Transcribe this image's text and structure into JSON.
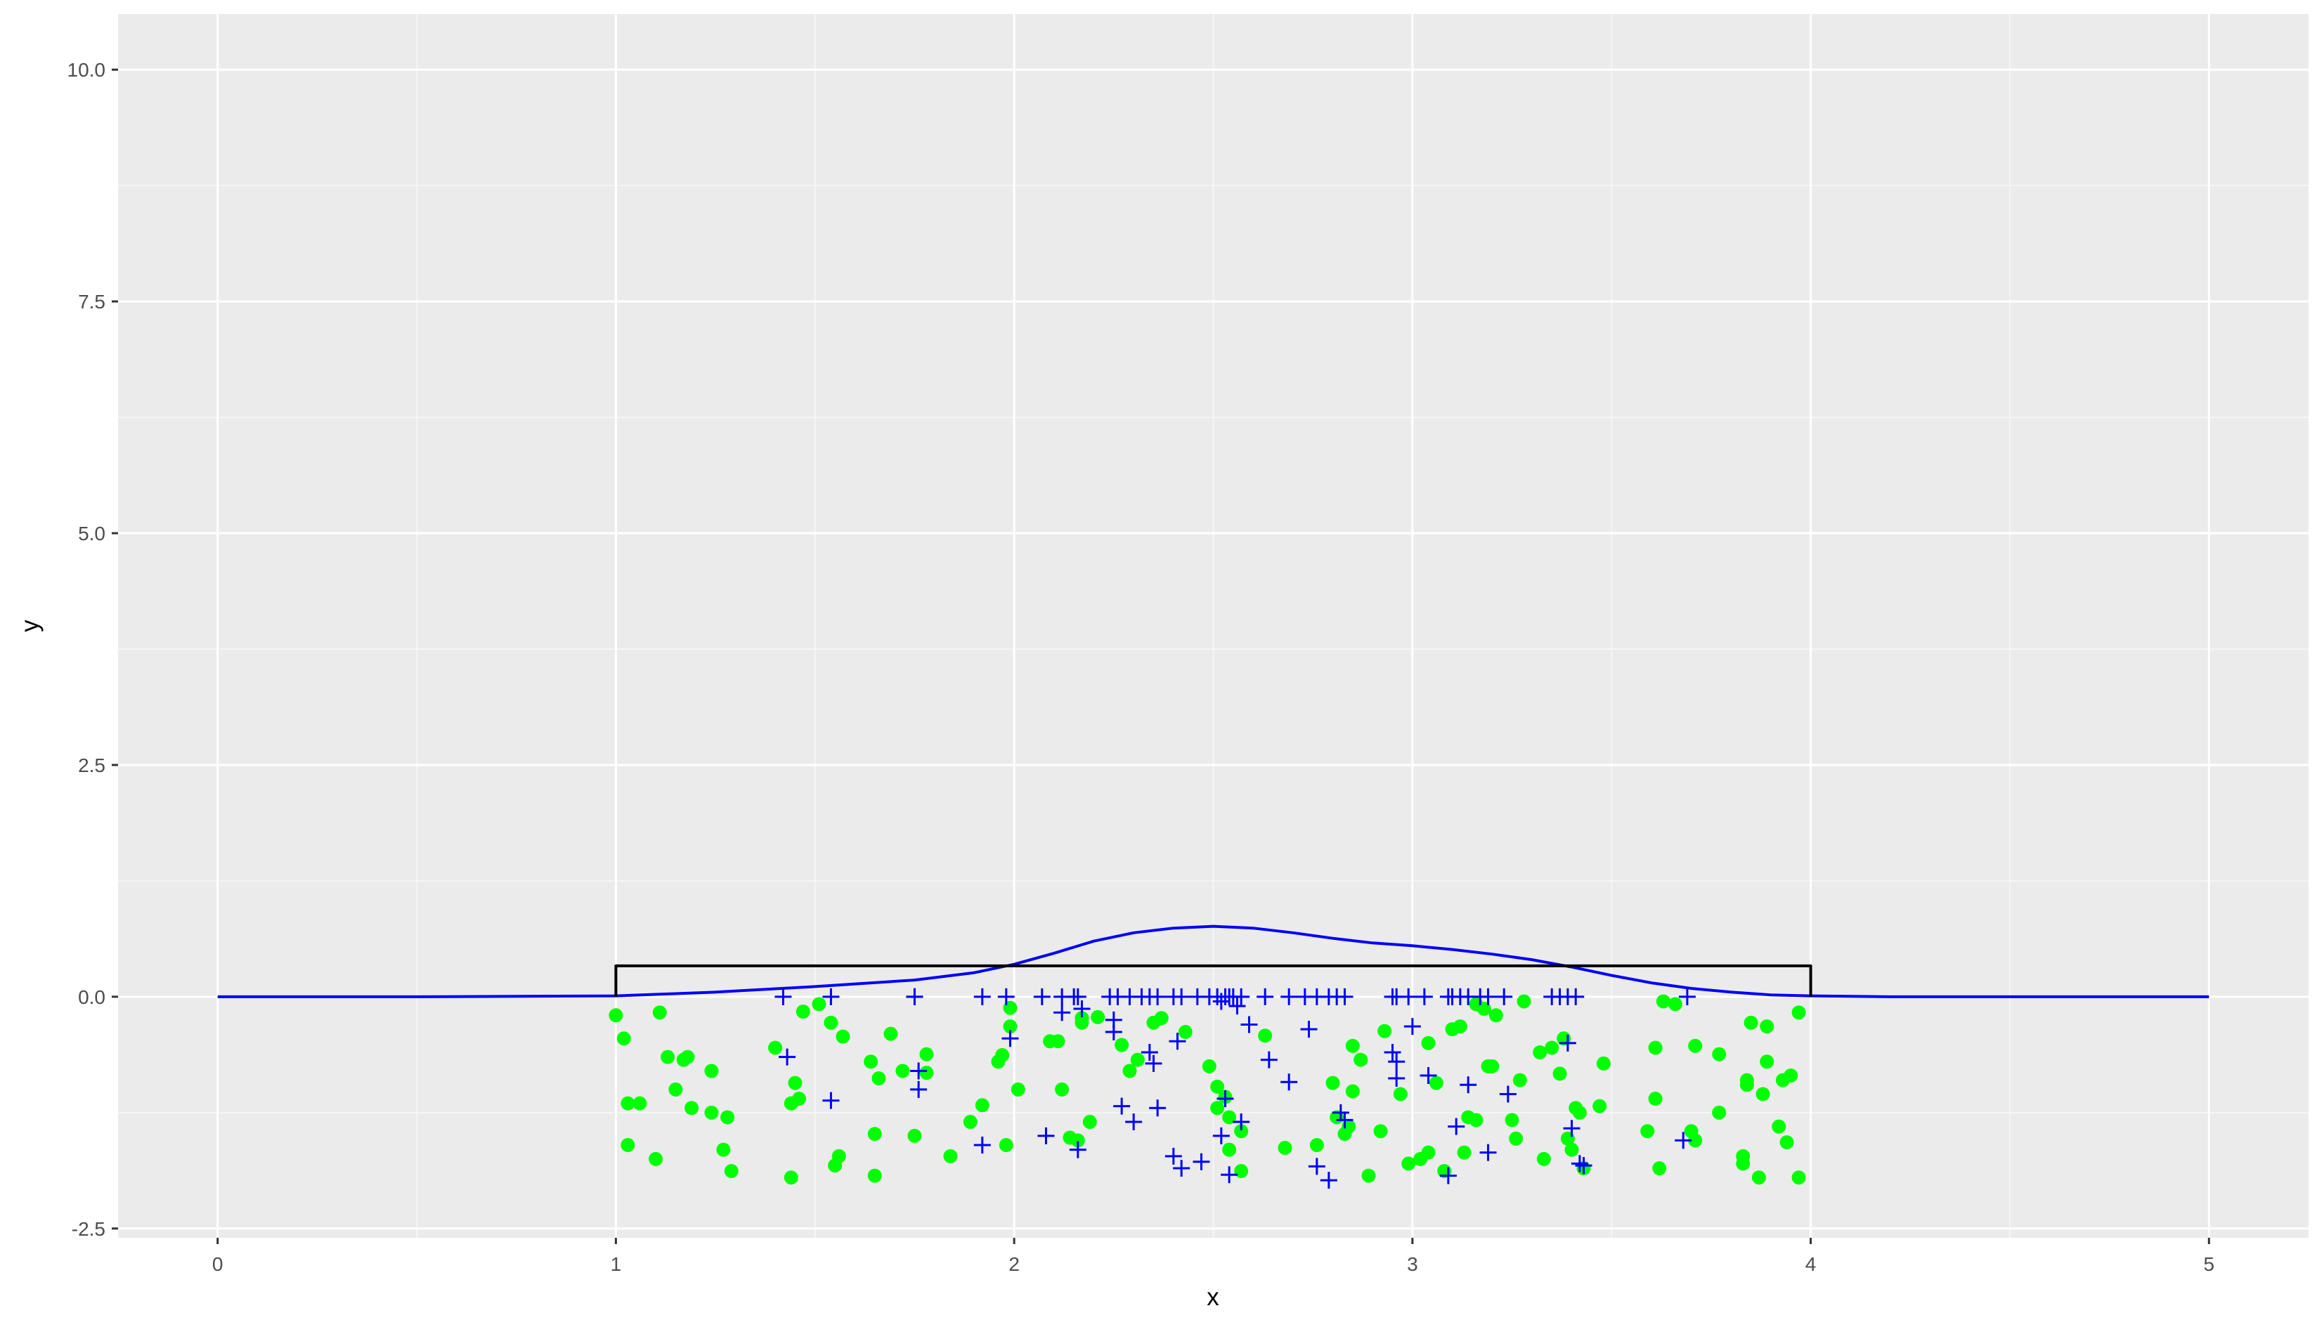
{
  "chart_data": {
    "type": "scatter",
    "title": "",
    "xlabel": "x",
    "ylabel": "y",
    "xlim": [
      -0.25,
      5.25
    ],
    "ylim": [
      -2.6,
      10.6
    ],
    "x_ticks": [
      0,
      1,
      2,
      3,
      4,
      5
    ],
    "x_tick_labels": [
      "0",
      "1",
      "2",
      "3",
      "4",
      "5"
    ],
    "y_ticks": [
      -2.5,
      0,
      2.5,
      5,
      7.5,
      10
    ],
    "y_tick_labels": [
      "-2.5",
      "0.0",
      "2.5",
      "5.0",
      "7.5",
      "10.0"
    ],
    "grid": true,
    "legend": "none",
    "colors": {
      "panel_bg": "#ebebeb",
      "grid_major": "#ffffff",
      "grid_minor": "#f5f5f5",
      "density_line": "#0000ff",
      "uniform_line": "#000000",
      "green_points": "#00ff00",
      "blue_crosses": "#0000ff"
    },
    "lines": [
      {
        "style": "density",
        "color": "#0000ff",
        "x": [
          0,
          0.5,
          1.0,
          1.25,
          1.5,
          1.75,
          1.9,
          2.0,
          2.1,
          2.2,
          2.3,
          2.4,
          2.5,
          2.6,
          2.7,
          2.8,
          2.9,
          3.0,
          3.1,
          3.2,
          3.3,
          3.4,
          3.5,
          3.6,
          3.7,
          3.8,
          3.9,
          4.0,
          4.2,
          4.5,
          5.0
        ],
        "y": [
          0,
          0,
          0.01,
          0.05,
          0.11,
          0.18,
          0.26,
          0.35,
          0.47,
          0.6,
          0.69,
          0.74,
          0.76,
          0.74,
          0.69,
          0.63,
          0.58,
          0.55,
          0.51,
          0.46,
          0.4,
          0.32,
          0.23,
          0.15,
          0.09,
          0.05,
          0.02,
          0.01,
          0.0,
          0,
          0
        ]
      },
      {
        "style": "uniform",
        "color": "#000000",
        "x": [
          1,
          1,
          4,
          4
        ],
        "y": [
          0,
          0.333,
          0.333,
          0
        ]
      }
    ],
    "series": [
      {
        "marker": "circle",
        "color": "#00ff00",
        "points": [
          [
            1.0,
            -0.2
          ],
          [
            1.02,
            -0.45
          ],
          [
            1.03,
            -1.15
          ],
          [
            1.03,
            -1.6
          ],
          [
            1.06,
            -1.15
          ],
          [
            1.1,
            -1.75
          ],
          [
            1.11,
            -0.17
          ],
          [
            1.13,
            -0.65
          ],
          [
            1.15,
            -1.0
          ],
          [
            1.17,
            -0.68
          ],
          [
            1.18,
            -0.65
          ],
          [
            1.19,
            -1.2
          ],
          [
            1.24,
            -0.8
          ],
          [
            1.24,
            -1.25
          ],
          [
            1.27,
            -1.65
          ],
          [
            1.28,
            -1.3
          ],
          [
            1.29,
            -1.88
          ],
          [
            1.4,
            -0.55
          ],
          [
            1.44,
            -1.15
          ],
          [
            1.44,
            -1.95
          ],
          [
            1.45,
            -0.93
          ],
          [
            1.46,
            -1.1
          ],
          [
            1.47,
            -0.16
          ],
          [
            1.51,
            -0.08
          ],
          [
            1.54,
            -0.28
          ],
          [
            1.55,
            -1.82
          ],
          [
            1.56,
            -1.72
          ],
          [
            1.57,
            -0.43
          ],
          [
            1.64,
            -0.7
          ],
          [
            1.65,
            -1.48
          ],
          [
            1.65,
            -1.93
          ],
          [
            1.66,
            -0.88
          ],
          [
            1.69,
            -0.4
          ],
          [
            1.72,
            -0.8
          ],
          [
            1.75,
            -1.5
          ],
          [
            1.78,
            -0.62
          ],
          [
            1.78,
            -0.82
          ],
          [
            1.84,
            -1.72
          ],
          [
            1.89,
            -1.35
          ],
          [
            1.92,
            -1.17
          ],
          [
            1.96,
            -0.7
          ],
          [
            1.97,
            -0.63
          ],
          [
            1.98,
            -1.6
          ],
          [
            1.99,
            -0.12
          ],
          [
            1.99,
            -0.32
          ],
          [
            2.01,
            -1.0
          ],
          [
            2.09,
            -0.48
          ],
          [
            2.11,
            -0.48
          ],
          [
            2.12,
            -1.0
          ],
          [
            2.14,
            -1.52
          ],
          [
            2.16,
            -1.55
          ],
          [
            2.17,
            -0.28
          ],
          [
            2.17,
            -0.23
          ],
          [
            2.19,
            -1.35
          ],
          [
            2.21,
            -0.22
          ],
          [
            2.27,
            -0.52
          ],
          [
            2.29,
            -0.8
          ],
          [
            2.31,
            -0.68
          ],
          [
            2.35,
            -0.28
          ],
          [
            2.37,
            -0.23
          ],
          [
            2.43,
            -0.38
          ],
          [
            2.49,
            -0.75
          ],
          [
            2.51,
            -1.2
          ],
          [
            2.51,
            -0.97
          ],
          [
            2.53,
            -1.08
          ],
          [
            2.54,
            -1.3
          ],
          [
            2.54,
            -1.65
          ],
          [
            2.57,
            -1.45
          ],
          [
            2.57,
            -1.88
          ],
          [
            2.63,
            -0.42
          ],
          [
            2.68,
            -1.63
          ],
          [
            2.76,
            -1.6
          ],
          [
            2.8,
            -0.93
          ],
          [
            2.81,
            -1.3
          ],
          [
            2.83,
            -1.48
          ],
          [
            2.84,
            -1.4
          ],
          [
            2.85,
            -1.02
          ],
          [
            2.85,
            -0.53
          ],
          [
            2.87,
            -0.68
          ],
          [
            2.89,
            -1.93
          ],
          [
            2.92,
            -1.45
          ],
          [
            2.93,
            -0.37
          ],
          [
            2.97,
            -1.05
          ],
          [
            2.99,
            -1.8
          ],
          [
            3.02,
            -1.75
          ],
          [
            3.04,
            -1.68
          ],
          [
            3.04,
            -0.5
          ],
          [
            3.06,
            -0.93
          ],
          [
            3.08,
            -1.88
          ],
          [
            3.1,
            -0.35
          ],
          [
            3.12,
            -0.32
          ],
          [
            3.13,
            -1.68
          ],
          [
            3.14,
            -1.3
          ],
          [
            3.16,
            -1.33
          ],
          [
            3.16,
            -0.08
          ],
          [
            3.18,
            -0.13
          ],
          [
            3.19,
            -0.75
          ],
          [
            3.2,
            -0.75
          ],
          [
            3.21,
            -0.2
          ],
          [
            3.25,
            -1.33
          ],
          [
            3.26,
            -1.53
          ],
          [
            3.27,
            -0.9
          ],
          [
            3.28,
            -0.05
          ],
          [
            3.32,
            -0.6
          ],
          [
            3.33,
            -1.75
          ],
          [
            3.35,
            -0.55
          ],
          [
            3.37,
            -0.83
          ],
          [
            3.38,
            -0.45
          ],
          [
            3.39,
            -1.53
          ],
          [
            3.4,
            -1.65
          ],
          [
            3.41,
            -1.2
          ],
          [
            3.42,
            -1.25
          ],
          [
            3.43,
            -1.85
          ],
          [
            3.47,
            -1.18
          ],
          [
            3.48,
            -0.72
          ],
          [
            3.59,
            -1.45
          ],
          [
            3.61,
            -0.55
          ],
          [
            3.61,
            -1.1
          ],
          [
            3.62,
            -1.85
          ],
          [
            3.63,
            -0.05
          ],
          [
            3.66,
            -0.08
          ],
          [
            3.7,
            -1.45
          ],
          [
            3.71,
            -1.55
          ],
          [
            3.71,
            -0.53
          ],
          [
            3.77,
            -0.62
          ],
          [
            3.77,
            -1.25
          ],
          [
            3.83,
            -1.72
          ],
          [
            3.83,
            -1.8
          ],
          [
            3.84,
            -0.95
          ],
          [
            3.84,
            -0.9
          ],
          [
            3.85,
            -0.28
          ],
          [
            3.87,
            -1.95
          ],
          [
            3.88,
            -1.05
          ],
          [
            3.89,
            -0.7
          ],
          [
            3.89,
            -0.32
          ],
          [
            3.92,
            -1.4
          ],
          [
            3.93,
            -0.9
          ],
          [
            3.94,
            -1.57
          ],
          [
            3.95,
            -0.85
          ],
          [
            3.97,
            -1.95
          ],
          [
            3.97,
            -0.17
          ]
        ]
      },
      {
        "marker": "cross",
        "color": "#0000ff",
        "points": [
          [
            1.42,
            0
          ],
          [
            1.43,
            -0.65
          ],
          [
            1.54,
            0
          ],
          [
            1.54,
            -1.12
          ],
          [
            1.75,
            0
          ],
          [
            1.75,
            0
          ],
          [
            1.76,
            -0.8
          ],
          [
            1.76,
            -1.0
          ],
          [
            1.92,
            0
          ],
          [
            1.92,
            -1.6
          ],
          [
            1.98,
            0
          ],
          [
            1.99,
            -0.45
          ],
          [
            2.07,
            0
          ],
          [
            2.08,
            -1.5
          ],
          [
            2.12,
            0
          ],
          [
            2.12,
            -0.17
          ],
          [
            2.15,
            0
          ],
          [
            2.16,
            -1.65
          ],
          [
            2.16,
            0
          ],
          [
            2.17,
            -0.13
          ],
          [
            2.24,
            0
          ],
          [
            2.25,
            -0.38
          ],
          [
            2.25,
            -0.25
          ],
          [
            2.26,
            0
          ],
          [
            2.27,
            -1.18
          ],
          [
            2.29,
            0
          ],
          [
            2.3,
            -1.35
          ],
          [
            2.32,
            0
          ],
          [
            2.34,
            -0.6
          ],
          [
            2.34,
            0
          ],
          [
            2.35,
            -0.72
          ],
          [
            2.36,
            0
          ],
          [
            2.36,
            -1.2
          ],
          [
            2.4,
            0
          ],
          [
            2.4,
            -1.72
          ],
          [
            2.41,
            -0.48
          ],
          [
            2.42,
            0
          ],
          [
            2.42,
            -1.85
          ],
          [
            2.46,
            0
          ],
          [
            2.47,
            -1.78
          ],
          [
            2.49,
            0
          ],
          [
            2.51,
            0
          ],
          [
            2.52,
            -0.05
          ],
          [
            2.52,
            -1.5
          ],
          [
            2.53,
            0
          ],
          [
            2.53,
            -1.1
          ],
          [
            2.54,
            0
          ],
          [
            2.54,
            -1.92
          ],
          [
            2.55,
            0
          ],
          [
            2.56,
            -0.1
          ],
          [
            2.57,
            -1.35
          ],
          [
            2.57,
            0
          ],
          [
            2.59,
            -0.3
          ],
          [
            2.63,
            0
          ],
          [
            2.64,
            -0.68
          ],
          [
            2.69,
            -0.92
          ],
          [
            2.69,
            0
          ],
          [
            2.73,
            0
          ],
          [
            2.74,
            -0.35
          ],
          [
            2.76,
            0
          ],
          [
            2.76,
            -1.83
          ],
          [
            2.79,
            0
          ],
          [
            2.79,
            -1.98
          ],
          [
            2.81,
            0
          ],
          [
            2.82,
            -1.25
          ],
          [
            2.83,
            0
          ],
          [
            2.83,
            -1.33
          ],
          [
            2.95,
            0
          ],
          [
            2.95,
            -0.6
          ],
          [
            2.96,
            0
          ],
          [
            2.96,
            -0.7
          ],
          [
            2.96,
            -0.88
          ],
          [
            2.99,
            0
          ],
          [
            3.0,
            -0.32
          ],
          [
            3.03,
            0
          ],
          [
            3.04,
            -0.85
          ],
          [
            3.09,
            0
          ],
          [
            3.09,
            -1.93
          ],
          [
            3.1,
            0
          ],
          [
            3.11,
            -1.4
          ],
          [
            3.12,
            0
          ],
          [
            3.14,
            -0.95
          ],
          [
            3.14,
            0
          ],
          [
            3.17,
            0
          ],
          [
            3.19,
            0
          ],
          [
            3.19,
            -1.68
          ],
          [
            3.23,
            0
          ],
          [
            3.24,
            -1.05
          ],
          [
            3.35,
            0
          ],
          [
            3.37,
            0
          ],
          [
            3.39,
            0
          ],
          [
            3.39,
            -0.5
          ],
          [
            3.4,
            -1.42
          ],
          [
            3.41,
            0
          ],
          [
            3.42,
            -1.8
          ],
          [
            3.43,
            -1.82
          ],
          [
            3.68,
            -1.55
          ],
          [
            3.69,
            0
          ]
        ]
      }
    ]
  }
}
